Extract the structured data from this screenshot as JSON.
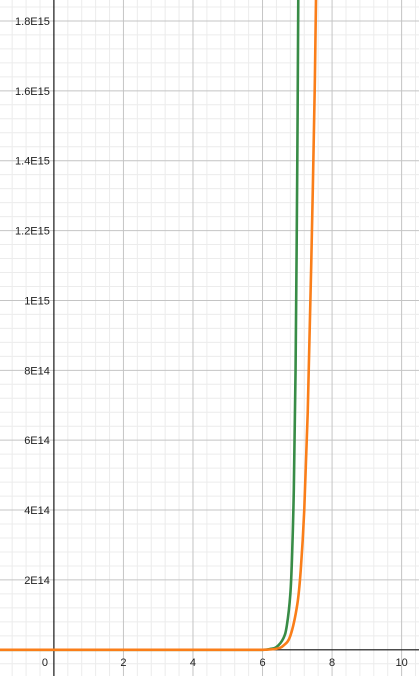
{
  "chart_data": {
    "type": "line",
    "title": "",
    "xlabel": "",
    "ylabel": "",
    "xlim": [
      -1.55,
      10.5
    ],
    "ylim": [
      -75000000000000.0,
      1860000000000000.0
    ],
    "grid": true,
    "legend": "none",
    "x_ticks": [
      {
        "value": 0,
        "label": "0"
      },
      {
        "value": 2,
        "label": "2"
      },
      {
        "value": 4,
        "label": "4"
      },
      {
        "value": 6,
        "label": "6"
      },
      {
        "value": 8,
        "label": "8"
      },
      {
        "value": 10,
        "label": "10"
      }
    ],
    "y_ticks": [
      {
        "value": 200000000000000.0,
        "label": "2E14"
      },
      {
        "value": 400000000000000.0,
        "label": "4E14"
      },
      {
        "value": 600000000000000.0,
        "label": "6E14"
      },
      {
        "value": 800000000000000.0,
        "label": "8E14"
      },
      {
        "value": 1000000000000000.0,
        "label": "1E15"
      },
      {
        "value": 1200000000000000.0,
        "label": "1.2E15"
      },
      {
        "value": 1400000000000000.0,
        "label": "1.4E15"
      },
      {
        "value": 1600000000000000.0,
        "label": "1.6E15"
      },
      {
        "value": 1800000000000000.0,
        "label": "1.8E15"
      }
    ],
    "series": [
      {
        "color": "#388c46",
        "x": [
          -1.55,
          0,
          2,
          4,
          5.5,
          6,
          6.2,
          6.4,
          6.6,
          6.7,
          6.8,
          6.85,
          6.9,
          6.95,
          7.0,
          7.03
        ],
        "y": [
          0,
          0,
          0,
          0,
          0,
          0,
          2000000000000.0,
          8000000000000.0,
          33000000000000.0,
          70000000000000.0,
          160000000000000.0,
          270000000000000.0,
          460000000000000.0,
          800000000000000.0,
          1400000000000000.0,
          1900000000000000.0
        ]
      },
      {
        "color": "#fa7e19",
        "x": [
          -1.55,
          0,
          2,
          4,
          5.5,
          6,
          6.4,
          6.6,
          6.8,
          7.0,
          7.1,
          7.2,
          7.3,
          7.4,
          7.5,
          7.55
        ],
        "y": [
          0,
          0,
          0,
          0,
          0,
          0,
          3000000000000.0,
          12000000000000.0,
          40000000000000.0,
          130000000000000.0,
          230000000000000.0,
          400000000000000.0,
          680000000000000.0,
          1100000000000000.0,
          1600000000000000.0,
          1950000000000000.0
        ]
      }
    ]
  }
}
